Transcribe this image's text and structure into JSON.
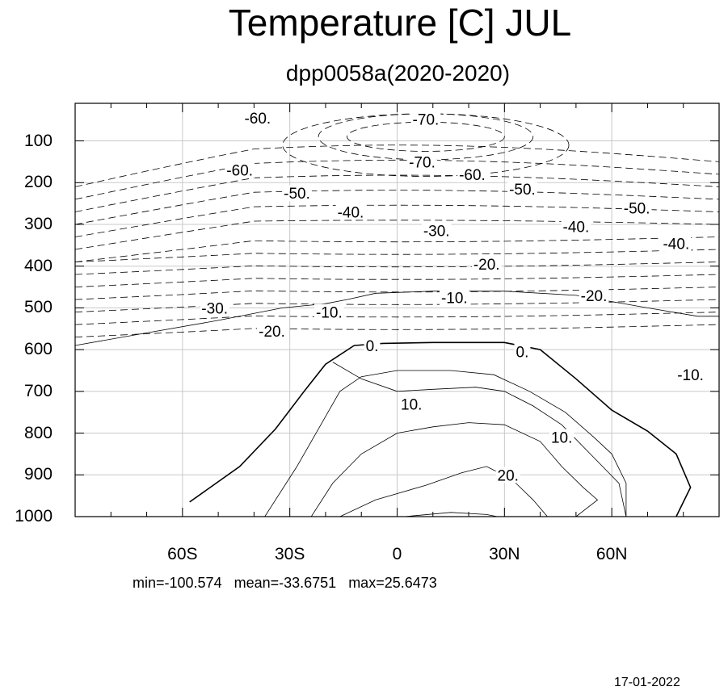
{
  "chart_data": {
    "type": "contour",
    "title": "Temperature [C] JUL",
    "subtitle": "dpp0058a(2020-2020)",
    "x_ticks": [
      "60S",
      "30S",
      "0",
      "30N",
      "60N"
    ],
    "x_tick_values": [
      -60,
      -30,
      0,
      30,
      60
    ],
    "x_range": [
      -90,
      90
    ],
    "y_ticks": [
      "100",
      "200",
      "300",
      "400",
      "500",
      "600",
      "700",
      "800",
      "900",
      "1000"
    ],
    "y_tick_values": [
      100,
      200,
      300,
      400,
      500,
      600,
      700,
      800,
      900,
      1000
    ],
    "y_range": [
      10,
      1000
    ],
    "grid": true,
    "stats": {
      "min": "-100.574",
      "mean": "-33.6751",
      "max": "25.6473"
    },
    "contour_labels": [
      {
        "text": "-60.",
        "x": -39,
        "y": 45
      },
      {
        "text": "-70.",
        "x": 8,
        "y": 48
      },
      {
        "text": "-60.",
        "x": -44,
        "y": 170
      },
      {
        "text": "-70.",
        "x": 7,
        "y": 150
      },
      {
        "text": "-60.",
        "x": 21,
        "y": 180
      },
      {
        "text": "-50.",
        "x": -28,
        "y": 225
      },
      {
        "text": "-50.",
        "x": 35,
        "y": 215
      },
      {
        "text": "-50.",
        "x": 67,
        "y": 260
      },
      {
        "text": "-40.",
        "x": -13,
        "y": 270
      },
      {
        "text": "-40.",
        "x": 50,
        "y": 305
      },
      {
        "text": "-40.",
        "x": 78,
        "y": 345
      },
      {
        "text": "-30.",
        "x": 11,
        "y": 315
      },
      {
        "text": "-20.",
        "x": 25,
        "y": 395
      },
      {
        "text": "-20.",
        "x": 55,
        "y": 470
      },
      {
        "text": "-20.",
        "x": -35,
        "y": 555
      },
      {
        "text": "-30.",
        "x": -51,
        "y": 500
      },
      {
        "text": "-10.",
        "x": 16,
        "y": 475
      },
      {
        "text": "-10.",
        "x": -19,
        "y": 510
      },
      {
        "text": "-10.",
        "x": 82,
        "y": 660
      },
      {
        "text": "0.",
        "x": -7,
        "y": 590
      },
      {
        "text": "0.",
        "x": 35,
        "y": 605
      },
      {
        "text": "10.",
        "x": 4,
        "y": 730
      },
      {
        "text": "10.",
        "x": 46,
        "y": 810
      },
      {
        "text": "20.",
        "x": 31,
        "y": 900
      }
    ],
    "contours": [
      {
        "level": 20,
        "points": [
          [
            -16,
            1000
          ],
          [
            -6,
            960
          ],
          [
            8,
            925
          ],
          [
            18,
            895
          ],
          [
            25,
            880
          ],
          [
            32,
            910
          ],
          [
            38,
            960
          ],
          [
            42,
            1000
          ]
        ]
      },
      {
        "level": 20,
        "points": [
          [
            2,
            1000
          ],
          [
            15,
            990
          ],
          [
            25,
            995
          ],
          [
            28,
            1000
          ]
        ]
      },
      {
        "level": 10,
        "points": [
          [
            -24,
            1000
          ],
          [
            -18,
            920
          ],
          [
            -10,
            850
          ],
          [
            0,
            800
          ],
          [
            10,
            785
          ],
          [
            20,
            775
          ],
          [
            30,
            780
          ],
          [
            40,
            820
          ],
          [
            46,
            880
          ],
          [
            52,
            930
          ],
          [
            56,
            960
          ],
          [
            50,
            1000
          ]
        ]
      },
      {
        "level": 10,
        "points": [
          [
            -18,
            630
          ],
          [
            -10,
            670
          ],
          [
            0,
            700
          ],
          [
            10,
            695
          ],
          [
            22,
            690
          ],
          [
            30,
            700
          ],
          [
            38,
            735
          ],
          [
            46,
            780
          ],
          [
            54,
            850
          ],
          [
            62,
            920
          ],
          [
            64,
            1000
          ]
        ]
      },
      {
        "level": 10,
        "points": [
          [
            -37,
            1000
          ],
          [
            -28,
            880
          ],
          [
            -22,
            790
          ],
          [
            -16,
            700
          ],
          [
            -10,
            665
          ],
          [
            0,
            650
          ],
          [
            15,
            650
          ],
          [
            27,
            660
          ],
          [
            37,
            700
          ],
          [
            47,
            750
          ],
          [
            55,
            810
          ],
          [
            60,
            850
          ],
          [
            64,
            920
          ],
          [
            64,
            1000
          ]
        ]
      },
      {
        "level": 0,
        "points": [
          [
            -58,
            965
          ],
          [
            -44,
            880
          ],
          [
            -34,
            790
          ],
          [
            -26,
            700
          ],
          [
            -20,
            635
          ],
          [
            -12,
            590
          ],
          [
            -4,
            585
          ],
          [
            10,
            583
          ],
          [
            30,
            583
          ],
          [
            40,
            600
          ],
          [
            50,
            670
          ],
          [
            60,
            745
          ],
          [
            70,
            795
          ],
          [
            78,
            850
          ],
          [
            82,
            930
          ],
          [
            78,
            1000
          ]
        ]
      },
      {
        "level": -10,
        "points": [
          [
            -90,
            590
          ],
          [
            -70,
            560
          ],
          [
            -50,
            530
          ],
          [
            -32,
            500
          ],
          [
            -20,
            490
          ],
          [
            -14,
            480
          ],
          [
            -6,
            465
          ],
          [
            10,
            460
          ],
          [
            30,
            460
          ],
          [
            50,
            470
          ],
          [
            70,
            500
          ],
          [
            84,
            520
          ],
          [
            90,
            520
          ]
        ]
      }
    ]
  }
}
